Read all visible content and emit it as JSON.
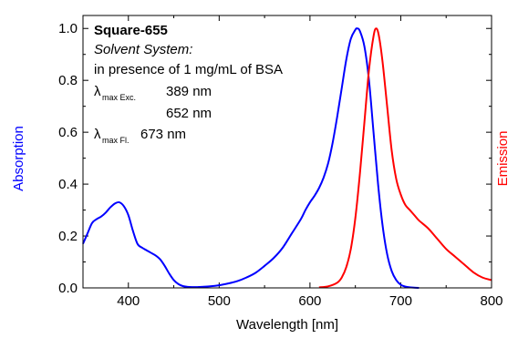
{
  "chart_data": {
    "type": "line",
    "xlabel": "Wavelength [nm]",
    "ylabel_left": "Absorption",
    "ylabel_right": "Emission",
    "xlim": [
      350,
      800
    ],
    "ylim": [
      0.0,
      1.05
    ],
    "x_ticks": [
      400,
      500,
      600,
      700,
      800
    ],
    "y_ticks": [
      "0.0",
      "0.2",
      "0.4",
      "0.6",
      "0.8",
      "1.0"
    ],
    "grid": false,
    "series": [
      {
        "color": "#0000ff",
        "x": [
          350,
          355,
          360,
          365,
          370,
          375,
          380,
          385,
          390,
          395,
          400,
          405,
          410,
          415,
          420,
          425,
          430,
          435,
          440,
          445,
          450,
          455,
          460,
          465,
          470,
          475,
          480,
          490,
          500,
          510,
          520,
          530,
          540,
          550,
          560,
          570,
          580,
          590,
          595,
          600,
          605,
          610,
          615,
          620,
          625,
          630,
          635,
          640,
          645,
          650,
          652,
          655,
          660,
          665,
          670,
          675,
          680,
          685,
          690,
          695,
          700,
          705,
          710,
          715,
          720
        ],
        "y": [
          0.17,
          0.21,
          0.25,
          0.265,
          0.275,
          0.29,
          0.31,
          0.325,
          0.33,
          0.315,
          0.28,
          0.22,
          0.17,
          0.155,
          0.145,
          0.135,
          0.125,
          0.11,
          0.085,
          0.055,
          0.03,
          0.015,
          0.007,
          0.004,
          0.003,
          0.003,
          0.004,
          0.006,
          0.01,
          0.017,
          0.026,
          0.04,
          0.058,
          0.085,
          0.115,
          0.155,
          0.21,
          0.265,
          0.3,
          0.33,
          0.355,
          0.385,
          0.425,
          0.48,
          0.56,
          0.66,
          0.77,
          0.88,
          0.96,
          0.995,
          1.0,
          0.99,
          0.93,
          0.8,
          0.6,
          0.4,
          0.24,
          0.13,
          0.065,
          0.03,
          0.012,
          0.005,
          0.002,
          0.001,
          0.0
        ]
      },
      {
        "color": "#ff0000",
        "x": [
          610,
          620,
          630,
          635,
          640,
          645,
          650,
          655,
          660,
          665,
          670,
          673,
          676,
          680,
          685,
          690,
          695,
          700,
          705,
          710,
          715,
          720,
          730,
          740,
          750,
          760,
          770,
          780,
          790,
          800
        ],
        "y": [
          0.002,
          0.006,
          0.02,
          0.04,
          0.08,
          0.15,
          0.27,
          0.44,
          0.64,
          0.84,
          0.97,
          1.0,
          0.97,
          0.87,
          0.7,
          0.53,
          0.42,
          0.36,
          0.32,
          0.3,
          0.28,
          0.26,
          0.23,
          0.19,
          0.15,
          0.12,
          0.09,
          0.06,
          0.04,
          0.03
        ]
      }
    ],
    "annotation": {
      "title": "Square-655",
      "solvent_label": "Solvent System:",
      "solvent_value": "in presence of 1 mg/mL of BSA",
      "lambda": "λ",
      "exc_sub": "max Exc.",
      "exc_value_1": "389 nm",
      "exc_value_2": "652 nm",
      "fl_sub": "max Fl.",
      "fl_value": "673 nm"
    }
  }
}
